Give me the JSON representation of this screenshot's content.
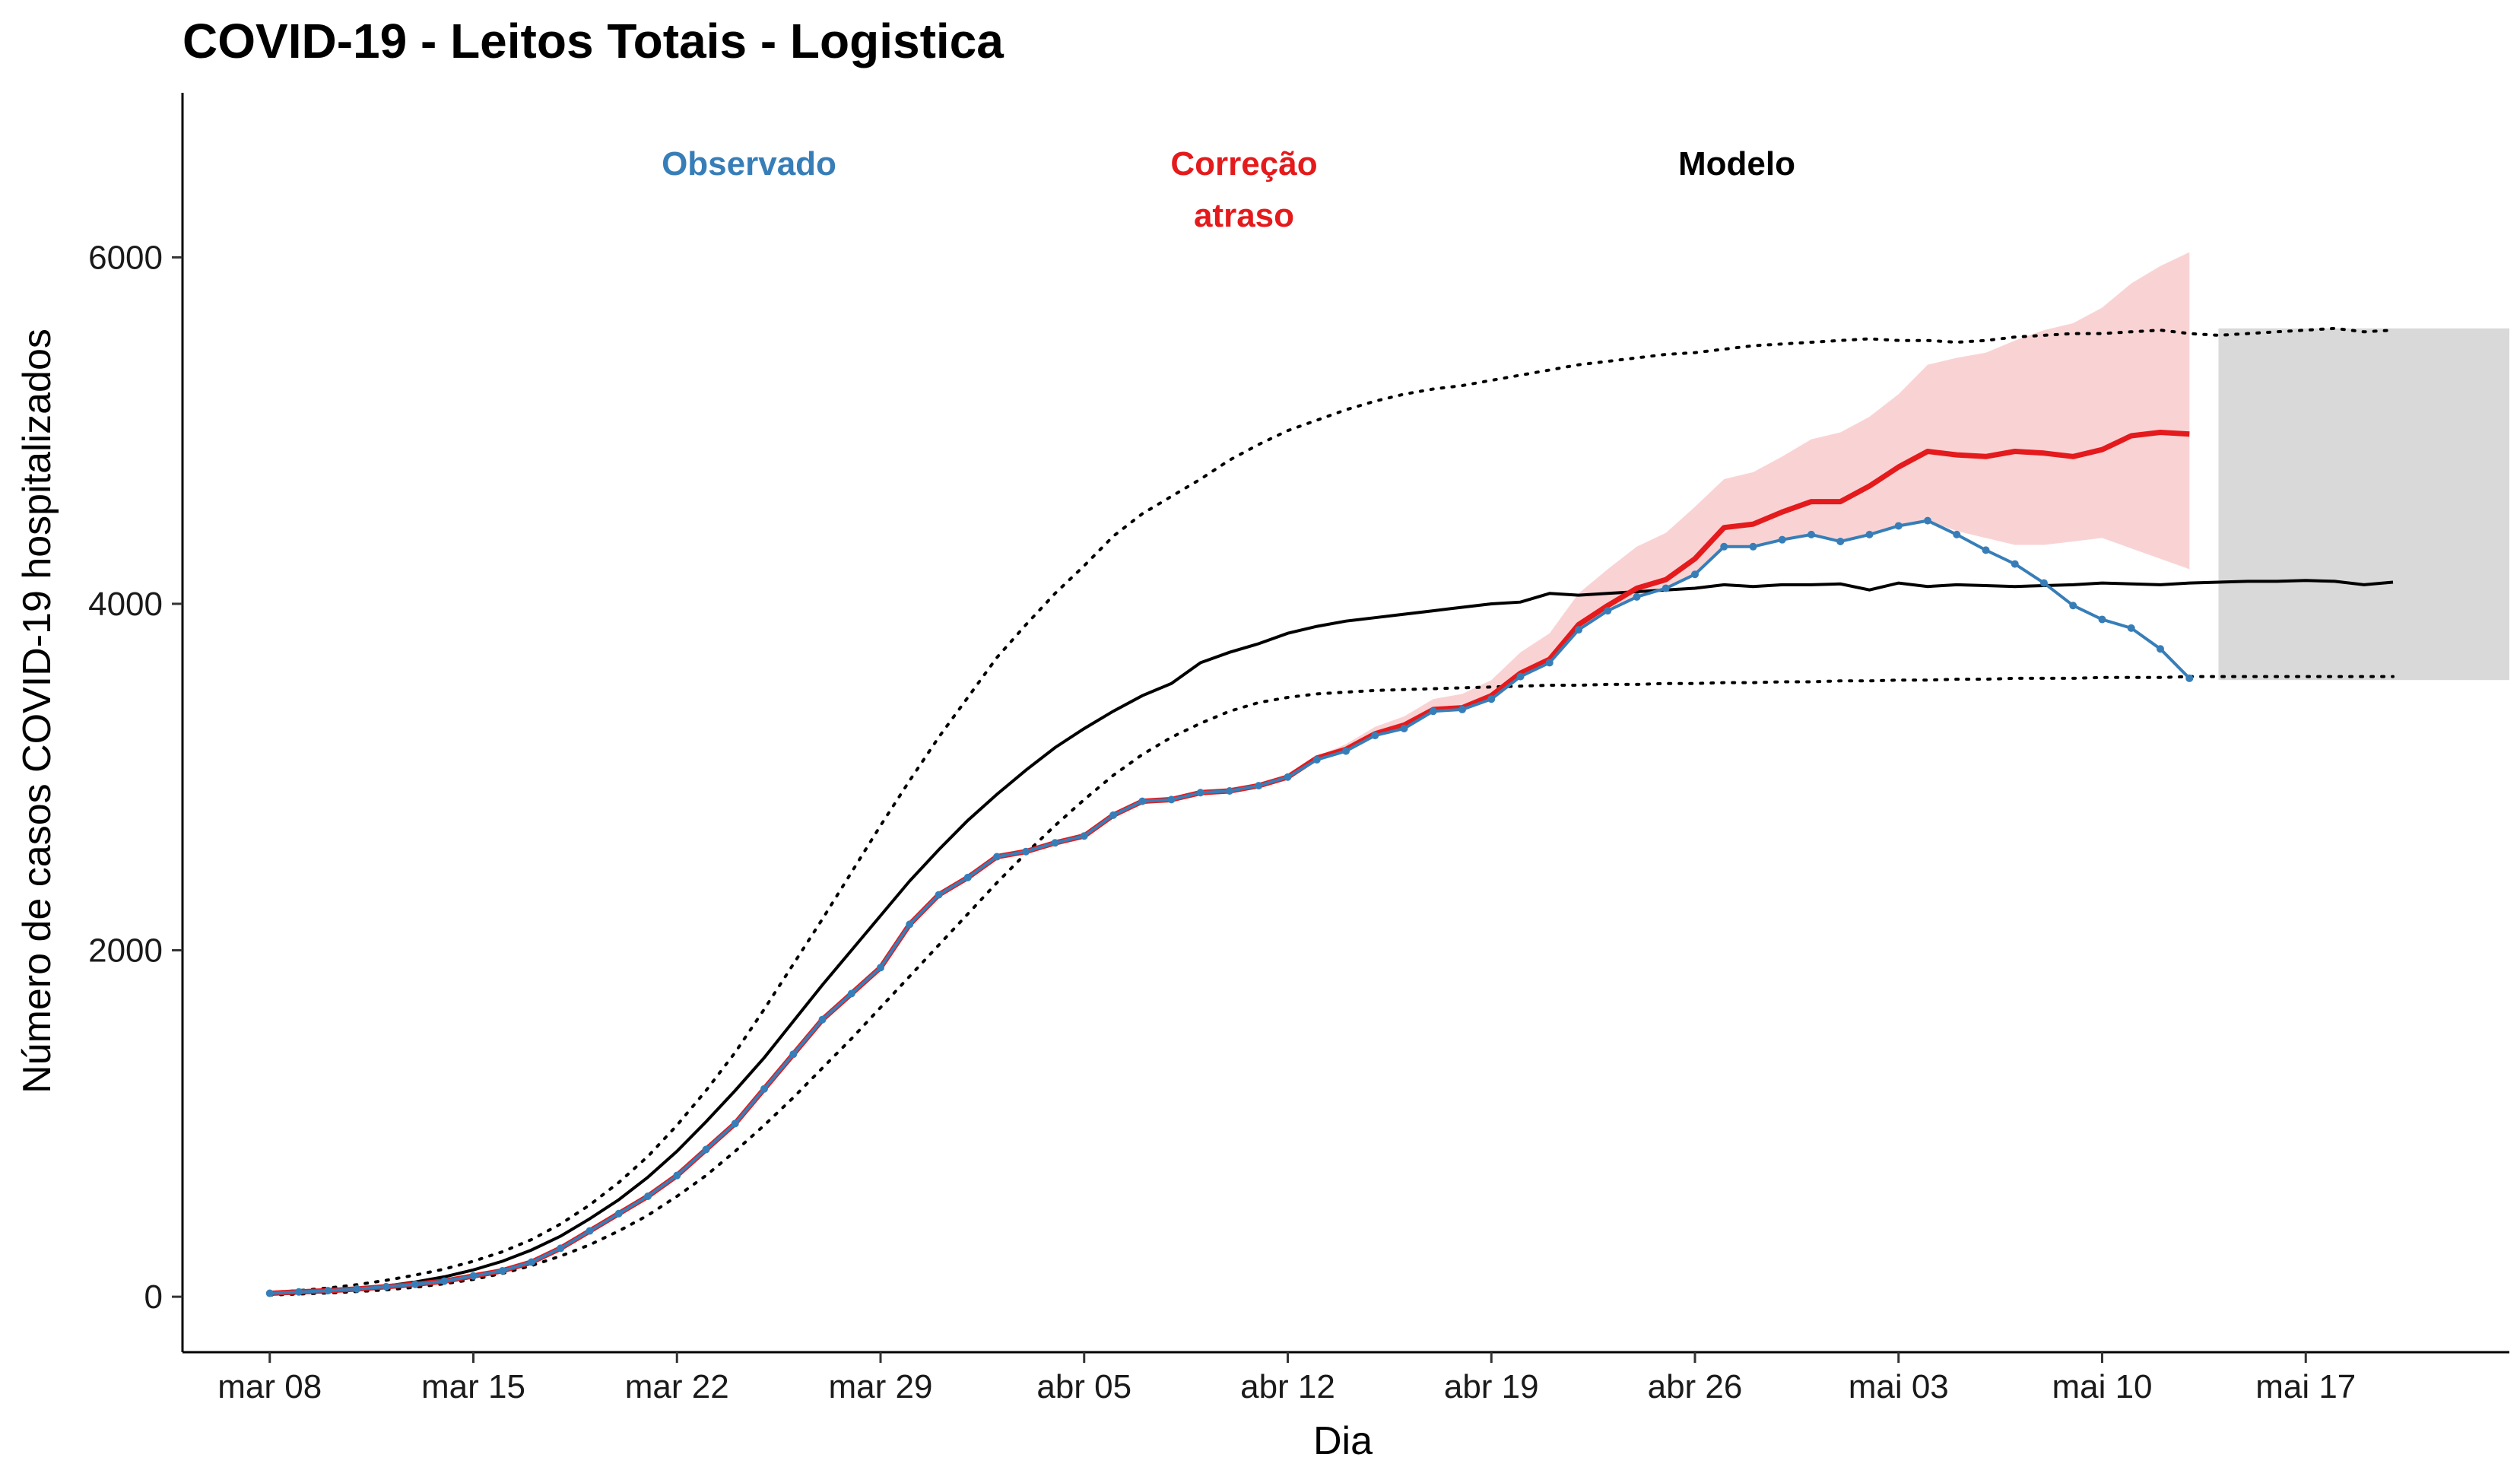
{
  "chart_data": {
    "type": "line",
    "title": "COVID-19 - Leitos Totais - Logistica",
    "xlabel": "Dia",
    "ylabel": "Número de casos COVID-19 hospitalizados",
    "xlim": [
      "2020-03-05",
      "2020-05-24"
    ],
    "ylim": [
      -320,
      6950
    ],
    "x_ticks": [
      "2020-03-08",
      "2020-03-15",
      "2020-03-22",
      "2020-03-29",
      "2020-04-05",
      "2020-04-12",
      "2020-04-19",
      "2020-04-26",
      "2020-05-03",
      "2020-05-10",
      "2020-05-17"
    ],
    "x_tick_labels": [
      "mar 08",
      "mar 15",
      "mar 22",
      "mar 29",
      "abr 05",
      "abr 12",
      "abr 19",
      "abr 26",
      "mai 03",
      "mai 10",
      "mai 17"
    ],
    "y_ticks": [
      0,
      2000,
      4000,
      6000
    ],
    "y_tick_labels": [
      "0",
      "2000",
      "4000",
      "6000"
    ],
    "grid": false,
    "legend": "none",
    "annotations": [
      {
        "text": "Observado",
        "color": "#377eb8"
      },
      {
        "text": "Correção",
        "text2": "atraso",
        "color": "#e41a1c"
      },
      {
        "text": "Modelo",
        "color": "#000000"
      }
    ],
    "colors": {
      "observed": "#377eb8",
      "corrected": "#e41a1c",
      "corrected_band": "#f9d3d4",
      "model": "#000000",
      "forecast_band": "#d9d9d9"
    },
    "x_start": "2020-03-08",
    "observed": [
      20,
      28,
      35,
      45,
      58,
      72,
      90,
      120,
      150,
      200,
      280,
      380,
      480,
      580,
      700,
      850,
      1000,
      1200,
      1400,
      1600,
      1750,
      1900,
      2150,
      2320,
      2420,
      2540,
      2570,
      2620,
      2660,
      2780,
      2860,
      2870,
      2910,
      2920,
      2950,
      3000,
      3100,
      3150,
      3240,
      3280,
      3380,
      3390,
      3450,
      3580,
      3660,
      3850,
      3960,
      4040,
      4090,
      4170,
      4330,
      4330,
      4370,
      4400,
      4360,
      4400,
      4450,
      4480,
      4400,
      4310,
      4230,
      4120,
      3990,
      3910,
      3860,
      3740,
      3570
    ],
    "corrected": [
      20,
      28,
      35,
      45,
      58,
      72,
      90,
      120,
      150,
      200,
      280,
      380,
      480,
      580,
      700,
      850,
      1000,
      1200,
      1400,
      1600,
      1750,
      1900,
      2150,
      2320,
      2420,
      2540,
      2570,
      2620,
      2660,
      2780,
      2860,
      2870,
      2910,
      2920,
      2950,
      3000,
      3110,
      3160,
      3250,
      3300,
      3390,
      3400,
      3470,
      3600,
      3680,
      3880,
      3990,
      4090,
      4140,
      4260,
      4440,
      4460,
      4530,
      4590,
      4590,
      4680,
      4790,
      4880,
      4860,
      4850,
      4880,
      4870,
      4850,
      4890,
      4970,
      4990,
      4980
    ],
    "corrected_upper": [
      20,
      28,
      35,
      45,
      58,
      72,
      90,
      120,
      150,
      200,
      280,
      380,
      480,
      580,
      700,
      850,
      1000,
      1200,
      1400,
      1600,
      1750,
      1900,
      2150,
      2320,
      2420,
      2540,
      2570,
      2620,
      2660,
      2780,
      2860,
      2870,
      2910,
      2920,
      2950,
      3000,
      3120,
      3190,
      3290,
      3350,
      3450,
      3480,
      3560,
      3720,
      3830,
      4060,
      4200,
      4330,
      4410,
      4560,
      4720,
      4760,
      4850,
      4950,
      4990,
      5080,
      5210,
      5380,
      5420,
      5450,
      5520,
      5580,
      5620,
      5710,
      5850,
      5950,
      6030
    ],
    "corrected_lower": [
      20,
      28,
      35,
      45,
      58,
      72,
      90,
      120,
      150,
      200,
      280,
      380,
      480,
      580,
      700,
      850,
      1000,
      1200,
      1400,
      1600,
      1750,
      1900,
      2150,
      2320,
      2420,
      2540,
      2570,
      2620,
      2660,
      2780,
      2860,
      2870,
      2910,
      2920,
      2950,
      3000,
      3100,
      3150,
      3240,
      3280,
      3380,
      3390,
      3450,
      3580,
      3660,
      3850,
      3960,
      4040,
      4090,
      4170,
      4330,
      4330,
      4370,
      4400,
      4360,
      4400,
      4450,
      4480,
      4420,
      4380,
      4340,
      4340,
      4360,
      4380,
      4320,
      4260,
      4200
    ],
    "model": [
      15,
      22,
      32,
      45,
      62,
      85,
      115,
      155,
      205,
      270,
      350,
      450,
      560,
      690,
      840,
      1010,
      1190,
      1380,
      1590,
      1800,
      2000,
      2200,
      2400,
      2580,
      2750,
      2900,
      3040,
      3170,
      3280,
      3380,
      3470,
      3540,
      3660,
      3720,
      3770,
      3830,
      3870,
      3900,
      3920,
      3940,
      3960,
      3980,
      4000,
      4010,
      4060,
      4050,
      4060,
      4070,
      4080,
      4090,
      4110,
      4100,
      4110,
      4110,
      4115,
      4080,
      4120,
      4100,
      4110,
      4105,
      4100,
      4105,
      4110,
      4120,
      4115,
      4110,
      4120,
      4125,
      4130,
      4130,
      4135,
      4130,
      4110,
      4125
    ],
    "model_upper": [
      25,
      35,
      50,
      70,
      95,
      125,
      160,
      205,
      260,
      330,
      420,
      530,
      660,
      810,
      990,
      1190,
      1410,
      1660,
      1920,
      2180,
      2450,
      2720,
      2980,
      3230,
      3460,
      3690,
      3880,
      4060,
      4220,
      4390,
      4520,
      4620,
      4720,
      4830,
      4920,
      5000,
      5060,
      5120,
      5170,
      5210,
      5240,
      5260,
      5290,
      5320,
      5350,
      5380,
      5400,
      5420,
      5440,
      5450,
      5470,
      5490,
      5500,
      5510,
      5520,
      5530,
      5520,
      5520,
      5510,
      5520,
      5540,
      5550,
      5560,
      5560,
      5570,
      5580,
      5560,
      5550,
      5560,
      5570,
      5580,
      5590,
      5570,
      5580
    ],
    "model_lower": [
      10,
      16,
      22,
      30,
      40,
      55,
      75,
      100,
      135,
      180,
      235,
      300,
      380,
      470,
      580,
      700,
      840,
      990,
      1150,
      1320,
      1490,
      1670,
      1850,
      2030,
      2210,
      2390,
      2560,
      2720,
      2870,
      3010,
      3130,
      3230,
      3310,
      3380,
      3430,
      3460,
      3480,
      3490,
      3500,
      3505,
      3510,
      3515,
      3520,
      3525,
      3530,
      3530,
      3535,
      3535,
      3540,
      3540,
      3545,
      3545,
      3550,
      3550,
      3555,
      3555,
      3560,
      3560,
      3565,
      3565,
      3570,
      3570,
      3570,
      3575,
      3575,
      3575,
      3580,
      3580,
      3580,
      3580,
      3580,
      3580,
      3580,
      3580
    ],
    "forecast_band": {
      "x_from": "2020-05-14",
      "x_to": "2020-05-24",
      "upper": 5590,
      "lower": 3560
    }
  }
}
